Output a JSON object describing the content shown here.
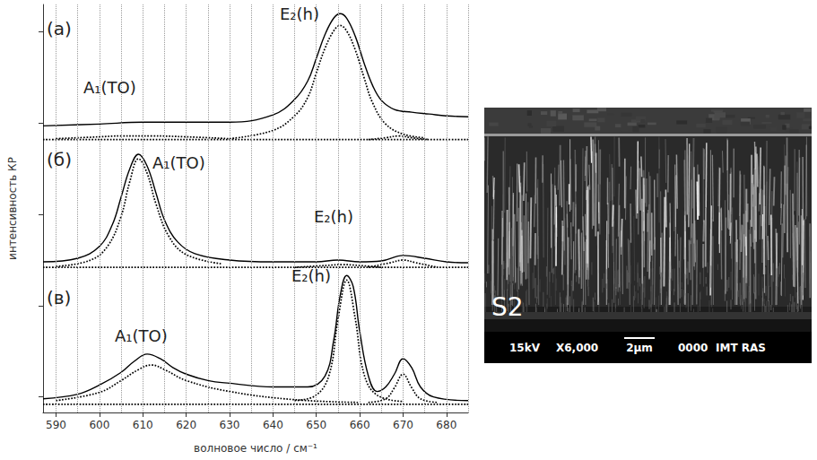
{
  "chart_data": {
    "type": "line",
    "x_label": "волновое число / см⁻¹",
    "y_label": "интенсивность КР",
    "xlim": [
      587,
      685
    ],
    "xticks": [
      590,
      600,
      610,
      620,
      630,
      640,
      650,
      660,
      670,
      680
    ],
    "ylim": [
      -0.17,
      4.3
    ],
    "yticks": [
      0,
      1,
      2,
      3,
      4
    ],
    "tick_labels": "x",
    "grid": true,
    "panels": [
      {
        "label": "(а)",
        "peak_labels": [
          "A₁(TO)",
          "E₂(h)"
        ],
        "series": [
          {
            "color": "#000000",
            "line_style": "solid",
            "x": [
              587,
              600,
              610,
              620,
              630,
              640,
              645,
              648,
              650,
              652,
              654,
              655.5,
              657,
              659,
              661,
              663,
              665,
              668,
              672,
              676,
              680,
              685
            ],
            "values": [
              2.97,
              2.99,
              3.01,
              3.01,
              3.01,
              3.09,
              3.26,
              3.46,
              3.71,
              3.97,
              4.15,
              4.2,
              4.15,
              3.95,
              3.66,
              3.41,
              3.25,
              3.15,
              3.12,
              3.1,
              3.08,
              3.07
            ]
          },
          {
            "color": "#000000",
            "line_style": "dotted",
            "x": [
              630,
              640,
              645,
              648,
              650,
              652,
              654,
              655.5,
              657,
              659,
              661,
              663,
              666,
              670,
              675
            ],
            "values": [
              2.83,
              2.92,
              3.08,
              3.28,
              3.55,
              3.82,
              4.01,
              4.07,
              4.01,
              3.8,
              3.5,
              3.22,
              2.99,
              2.88,
              2.84
            ]
          },
          {
            "color": "#000000",
            "line_style": "dotted",
            "x": [
              590,
              600,
              605,
              612,
              620,
              630
            ],
            "values": [
              2.83,
              2.85,
              2.86,
              2.86,
              2.85,
              2.83
            ]
          },
          {
            "color": "#000000",
            "line_style": "dotted",
            "x": [
              662,
              666,
              669,
              672,
              676
            ],
            "values": [
              2.82,
              2.84,
              2.86,
              2.84,
              2.82
            ]
          },
          {
            "color": "#000000",
            "line_style": "dotted",
            "x": [
              587,
              685
            ],
            "values": [
              2.82,
              2.82
            ]
          }
        ]
      },
      {
        "label": "(б)",
        "peak_labels": [
          "A₁(TO)",
          "E₂(h)"
        ],
        "series": [
          {
            "color": "#000000",
            "line_style": "solid",
            "x": [
              587,
              595,
              600,
              603,
              605,
              607,
              609,
              611,
              613,
              615,
              618,
              622,
              630,
              640,
              650,
              655,
              660,
              665,
              670,
              675,
              680,
              685
            ],
            "values": [
              1.48,
              1.52,
              1.65,
              1.89,
              2.19,
              2.5,
              2.66,
              2.53,
              2.24,
              1.94,
              1.7,
              1.57,
              1.5,
              1.48,
              1.48,
              1.5,
              1.48,
              1.49,
              1.55,
              1.52,
              1.48,
              1.47
            ]
          },
          {
            "color": "#000000",
            "line_style": "dotted",
            "x": [
              590,
              598,
              602,
              605,
              607,
              609,
              611,
              613,
              616,
              620,
              628
            ],
            "values": [
              1.43,
              1.5,
              1.66,
              1.98,
              2.36,
              2.61,
              2.45,
              2.12,
              1.76,
              1.56,
              1.46
            ]
          },
          {
            "color": "#000000",
            "line_style": "dotted",
            "x": [
              645,
              652,
              656,
              660,
              665
            ],
            "values": [
              1.42,
              1.44,
              1.45,
              1.44,
              1.42
            ]
          },
          {
            "color": "#000000",
            "line_style": "dotted",
            "x": [
              662,
              667,
              670,
              673,
              678
            ],
            "values": [
              1.42,
              1.47,
              1.5,
              1.47,
              1.42
            ]
          },
          {
            "color": "#000000",
            "line_style": "dotted",
            "x": [
              587,
              685
            ],
            "values": [
              1.42,
              1.42
            ]
          }
        ]
      },
      {
        "label": "(в)",
        "peak_labels": [
          "A₁(TO)",
          "E₂(h)"
        ],
        "series": [
          {
            "color": "#000000",
            "line_style": "solid",
            "x": [
              587,
              595,
              600,
              605,
              608,
              611,
              614,
              617,
              620,
              625,
              630,
              640,
              648,
              652,
              654,
              655.5,
              657,
              658.5,
              660,
              662,
              664,
              666,
              668,
              670,
              672,
              674,
              677,
              685
            ],
            "values": [
              -0.02,
              0.03,
              0.13,
              0.27,
              0.39,
              0.47,
              0.42,
              0.32,
              0.25,
              0.18,
              0.15,
              0.11,
              0.11,
              0.23,
              0.62,
              1.11,
              1.33,
              1.21,
              0.72,
              0.23,
              0.06,
              0.11,
              0.25,
              0.42,
              0.32,
              0.11,
              0.0,
              -0.04
            ]
          },
          {
            "color": "#000000",
            "line_style": "dotted",
            "x": [
              590,
              600,
              605,
              609,
              612,
              615,
              620,
              630,
              645,
              660
            ],
            "values": [
              -0.04,
              0.05,
              0.18,
              0.3,
              0.35,
              0.3,
              0.18,
              0.06,
              -0.03,
              -0.06
            ]
          },
          {
            "color": "#000000",
            "line_style": "dotted",
            "x": [
              645,
              650,
              653,
              655,
              657,
              659,
              661,
              664,
              670
            ],
            "values": [
              -0.04,
              0.02,
              0.25,
              0.85,
              1.28,
              0.85,
              0.25,
              0.02,
              -0.05
            ]
          },
          {
            "color": "#000000",
            "line_style": "dotted",
            "x": [
              662,
              666,
              668,
              670,
              672,
              674,
              678
            ],
            "values": [
              -0.06,
              -0.02,
              0.1,
              0.25,
              0.1,
              -0.02,
              -0.06
            ]
          },
          {
            "color": "#000000",
            "line_style": "dotted",
            "x": [
              587,
              685
            ],
            "values": [
              -0.08,
              -0.08
            ]
          }
        ]
      }
    ]
  },
  "image": {
    "label": "S2",
    "scale_bar": "2μm",
    "info": [
      "15kV",
      "X6,000",
      "0000",
      "IMT RAS"
    ]
  }
}
